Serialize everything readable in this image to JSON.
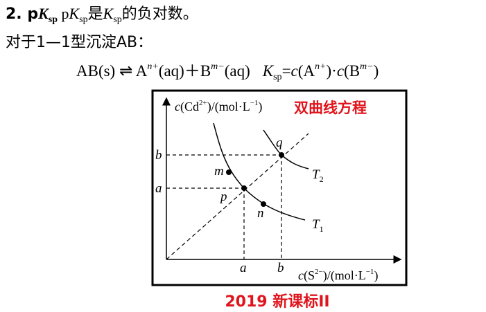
{
  "line1": [
    "2. p",
    "K",
    "sp",
    "  p",
    "K",
    "sp",
    "是",
    "K",
    "sp",
    "的负对数。"
  ],
  "line2": [
    "对于1—1型沉淀AB："
  ],
  "line3": [
    "AB(s) ⇌ A",
    "n+",
    "(aq)＋B",
    "m−",
    "(aq)",
    "K",
    "sp",
    "=",
    "c",
    "(A",
    "n+",
    ")·",
    "c",
    "(B",
    "m−",
    ")"
  ],
  "figure": {
    "y_label": [
      "c",
      "(Cd",
      "2+",
      ")/(mol·L",
      "−1",
      ")"
    ],
    "annotation": "双曲线方程",
    "x_label": [
      "c",
      "(S",
      "2−",
      ")/(mol·L",
      "−1",
      ")"
    ],
    "y_ticks": [
      "b",
      "a"
    ],
    "x_ticks": [
      "a",
      "b"
    ],
    "points": [
      "m",
      "p",
      "n",
      "q"
    ],
    "curves": [
      [
        "T",
        "1"
      ],
      [
        "T",
        "2"
      ]
    ]
  },
  "footer": "2019 新课标II"
}
